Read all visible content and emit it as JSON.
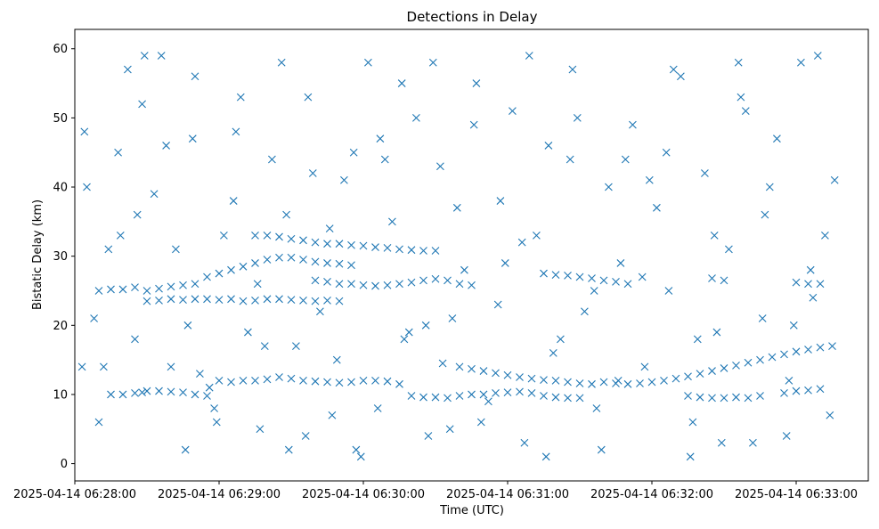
{
  "chart_data": {
    "type": "scatter",
    "title": "Detections in Delay",
    "xlabel": "Time (UTC)",
    "ylabel": "Bistatic Delay (km)",
    "marker": "x",
    "color": "#1f77b4",
    "x_unit": "seconds after 2025-04-14 06:28:00 UTC",
    "xlim": [
      0,
      330
    ],
    "ylim": [
      -2.5,
      62.8
    ],
    "x_ticks": [
      {
        "value": 0,
        "label": "2025-04-14 06:28:00"
      },
      {
        "value": 60,
        "label": "2025-04-14 06:29:00"
      },
      {
        "value": 120,
        "label": "2025-04-14 06:30:00"
      },
      {
        "value": 180,
        "label": "2025-04-14 06:31:00"
      },
      {
        "value": 240,
        "label": "2025-04-14 06:32:00"
      },
      {
        "value": 300,
        "label": "2025-04-14 06:33:00"
      }
    ],
    "y_ticks": [
      {
        "value": 0,
        "label": "0"
      },
      {
        "value": 10,
        "label": "10"
      },
      {
        "value": 20,
        "label": "20"
      },
      {
        "value": 30,
        "label": "30"
      },
      {
        "value": 40,
        "label": "40"
      },
      {
        "value": 50,
        "label": "50"
      },
      {
        "value": 60,
        "label": "60"
      }
    ],
    "series": [
      {
        "name": "detections",
        "points": [
          [
            15,
            10
          ],
          [
            20,
            10
          ],
          [
            25,
            10.2
          ],
          [
            28,
            10.3
          ],
          [
            30,
            10.5
          ],
          [
            35,
            10.5
          ],
          [
            40,
            10.4
          ],
          [
            45,
            10.3
          ],
          [
            50,
            10
          ],
          [
            55,
            9.8
          ],
          [
            60,
            12
          ],
          [
            65,
            11.8
          ],
          [
            70,
            12
          ],
          [
            75,
            12
          ],
          [
            80,
            12.2
          ],
          [
            85,
            12.5
          ],
          [
            90,
            12.3
          ],
          [
            95,
            12
          ],
          [
            100,
            11.9
          ],
          [
            105,
            11.8
          ],
          [
            110,
            11.7
          ],
          [
            115,
            11.8
          ],
          [
            120,
            12
          ],
          [
            125,
            12
          ],
          [
            130,
            11.9
          ],
          [
            135,
            11.5
          ],
          [
            140,
            9.8
          ],
          [
            145,
            9.6
          ],
          [
            150,
            9.6
          ],
          [
            155,
            9.5
          ],
          [
            160,
            9.8
          ],
          [
            165,
            10
          ],
          [
            170,
            10
          ],
          [
            175,
            10.2
          ],
          [
            180,
            10.3
          ],
          [
            185,
            10.4
          ],
          [
            190,
            10.2
          ],
          [
            195,
            9.8
          ],
          [
            200,
            9.6
          ],
          [
            205,
            9.5
          ],
          [
            210,
            9.5
          ],
          [
            153,
            14.5
          ],
          [
            160,
            14
          ],
          [
            165,
            13.7
          ],
          [
            170,
            13.4
          ],
          [
            175,
            13.1
          ],
          [
            180,
            12.8
          ],
          [
            185,
            12.5
          ],
          [
            190,
            12.3
          ],
          [
            195,
            12.1
          ],
          [
            200,
            12
          ],
          [
            205,
            11.8
          ],
          [
            210,
            11.6
          ],
          [
            215,
            11.5
          ],
          [
            220,
            11.8
          ],
          [
            225,
            11.6
          ],
          [
            230,
            11.5
          ],
          [
            235,
            11.6
          ],
          [
            240,
            11.8
          ],
          [
            245,
            12
          ],
          [
            250,
            12.3
          ],
          [
            255,
            12.6
          ],
          [
            260,
            13
          ],
          [
            265,
            13.4
          ],
          [
            270,
            13.8
          ],
          [
            275,
            14.2
          ],
          [
            280,
            14.6
          ],
          [
            285,
            15
          ],
          [
            290,
            15.4
          ],
          [
            295,
            15.8
          ],
          [
            300,
            16.2
          ],
          [
            305,
            16.5
          ],
          [
            310,
            16.8
          ],
          [
            315,
            17
          ],
          [
            255,
            9.8
          ],
          [
            260,
            9.6
          ],
          [
            265,
            9.5
          ],
          [
            270,
            9.5
          ],
          [
            275,
            9.6
          ],
          [
            280,
            9.5
          ],
          [
            285,
            9.8
          ],
          [
            295,
            10.2
          ],
          [
            300,
            10.5
          ],
          [
            305,
            10.6
          ],
          [
            310,
            10.8
          ],
          [
            10,
            25
          ],
          [
            15,
            25.2
          ],
          [
            20,
            25.2
          ],
          [
            25,
            25.5
          ],
          [
            30,
            25
          ],
          [
            35,
            25.3
          ],
          [
            40,
            25.6
          ],
          [
            45,
            25.8
          ],
          [
            50,
            26
          ],
          [
            55,
            27
          ],
          [
            60,
            27.5
          ],
          [
            65,
            28
          ],
          [
            70,
            28.5
          ],
          [
            75,
            29
          ],
          [
            80,
            29.5
          ],
          [
            30,
            23.5
          ],
          [
            35,
            23.6
          ],
          [
            40,
            23.8
          ],
          [
            45,
            23.7
          ],
          [
            50,
            23.8
          ],
          [
            55,
            23.8
          ],
          [
            60,
            23.7
          ],
          [
            65,
            23.8
          ],
          [
            70,
            23.5
          ],
          [
            75,
            23.6
          ],
          [
            80,
            23.8
          ],
          [
            85,
            23.8
          ],
          [
            90,
            23.7
          ],
          [
            95,
            23.6
          ],
          [
            100,
            23.5
          ],
          [
            105,
            23.6
          ],
          [
            110,
            23.5
          ],
          [
            75,
            33
          ],
          [
            80,
            33
          ],
          [
            85,
            32.8
          ],
          [
            90,
            32.5
          ],
          [
            95,
            32.3
          ],
          [
            100,
            32
          ],
          [
            105,
            31.8
          ],
          [
            110,
            31.8
          ],
          [
            115,
            31.6
          ],
          [
            120,
            31.5
          ],
          [
            125,
            31.3
          ],
          [
            130,
            31.2
          ],
          [
            135,
            31
          ],
          [
            140,
            30.9
          ],
          [
            145,
            30.8
          ],
          [
            150,
            30.8
          ],
          [
            85,
            29.8
          ],
          [
            90,
            29.8
          ],
          [
            95,
            29.5
          ],
          [
            100,
            29.2
          ],
          [
            105,
            29
          ],
          [
            110,
            28.9
          ],
          [
            115,
            28.7
          ],
          [
            100,
            26.5
          ],
          [
            105,
            26.3
          ],
          [
            110,
            26
          ],
          [
            115,
            26
          ],
          [
            120,
            25.8
          ],
          [
            125,
            25.7
          ],
          [
            130,
            25.8
          ],
          [
            135,
            26
          ],
          [
            140,
            26.2
          ],
          [
            145,
            26.5
          ],
          [
            150,
            26.7
          ],
          [
            155,
            26.5
          ],
          [
            160,
            26
          ],
          [
            165,
            25.8
          ],
          [
            195,
            27.5
          ],
          [
            200,
            27.3
          ],
          [
            205,
            27.2
          ],
          [
            210,
            27
          ],
          [
            215,
            26.8
          ],
          [
            220,
            26.5
          ],
          [
            225,
            26.3
          ],
          [
            230,
            26
          ],
          [
            265,
            26.8
          ],
          [
            270,
            26.5
          ],
          [
            300,
            26.2
          ],
          [
            305,
            26
          ],
          [
            310,
            26
          ],
          [
            25,
            18
          ],
          [
            40,
            14
          ],
          [
            50,
            56
          ],
          [
            5,
            40
          ],
          [
            10,
            6
          ],
          [
            12,
            14
          ],
          [
            18,
            45
          ],
          [
            22,
            57
          ],
          [
            28,
            52
          ],
          [
            33,
            39
          ],
          [
            38,
            46
          ],
          [
            42,
            31
          ],
          [
            47,
            20
          ],
          [
            52,
            13
          ],
          [
            58,
            8
          ],
          [
            62,
            33
          ],
          [
            67,
            48
          ],
          [
            72,
            19
          ],
          [
            77,
            5
          ],
          [
            82,
            44
          ],
          [
            88,
            36
          ],
          [
            92,
            17
          ],
          [
            97,
            53
          ],
          [
            102,
            22
          ],
          [
            107,
            7
          ],
          [
            112,
            41
          ],
          [
            117,
            2
          ],
          [
            122,
            58
          ],
          [
            127,
            47
          ],
          [
            132,
            35
          ],
          [
            137,
            18
          ],
          [
            142,
            50
          ],
          [
            147,
            4
          ],
          [
            152,
            43
          ],
          [
            157,
            21
          ],
          [
            162,
            28
          ],
          [
            167,
            55
          ],
          [
            172,
            9
          ],
          [
            177,
            38
          ],
          [
            182,
            51
          ],
          [
            187,
            3
          ],
          [
            192,
            33
          ],
          [
            197,
            46
          ],
          [
            202,
            18
          ],
          [
            207,
            57
          ],
          [
            212,
            22
          ],
          [
            217,
            8
          ],
          [
            222,
            40
          ],
          [
            227,
            29
          ],
          [
            232,
            49
          ],
          [
            237,
            14
          ],
          [
            242,
            37
          ],
          [
            247,
            25
          ],
          [
            252,
            56
          ],
          [
            257,
            6
          ],
          [
            262,
            42
          ],
          [
            267,
            19
          ],
          [
            272,
            31
          ],
          [
            277,
            53
          ],
          [
            282,
            3
          ],
          [
            287,
            36
          ],
          [
            292,
            47
          ],
          [
            297,
            12
          ],
          [
            302,
            58
          ],
          [
            307,
            24
          ],
          [
            312,
            33
          ],
          [
            316,
            41
          ],
          [
            4,
            48
          ],
          [
            8,
            21
          ],
          [
            14,
            31
          ],
          [
            26,
            36
          ],
          [
            36,
            59
          ],
          [
            46,
            2
          ],
          [
            56,
            11
          ],
          [
            66,
            38
          ],
          [
            76,
            26
          ],
          [
            86,
            58
          ],
          [
            96,
            4
          ],
          [
            106,
            34
          ],
          [
            116,
            45
          ],
          [
            126,
            8
          ],
          [
            136,
            55
          ],
          [
            146,
            20
          ],
          [
            156,
            5
          ],
          [
            166,
            49
          ],
          [
            176,
            23
          ],
          [
            186,
            32
          ],
          [
            196,
            1
          ],
          [
            206,
            44
          ],
          [
            216,
            25
          ],
          [
            226,
            12
          ],
          [
            236,
            27
          ],
          [
            246,
            45
          ],
          [
            256,
            1
          ],
          [
            266,
            33
          ],
          [
            276,
            58
          ],
          [
            286,
            21
          ],
          [
            296,
            4
          ],
          [
            306,
            28
          ],
          [
            314,
            7
          ],
          [
            3,
            14
          ],
          [
            19,
            33
          ],
          [
            29,
            59
          ],
          [
            49,
            47
          ],
          [
            59,
            6
          ],
          [
            69,
            53
          ],
          [
            79,
            17
          ],
          [
            89,
            2
          ],
          [
            99,
            42
          ],
          [
            109,
            15
          ],
          [
            119,
            1
          ],
          [
            129,
            44
          ],
          [
            139,
            19
          ],
          [
            149,
            58
          ],
          [
            159,
            37
          ],
          [
            169,
            6
          ],
          [
            179,
            29
          ],
          [
            189,
            59
          ],
          [
            199,
            16
          ],
          [
            209,
            50
          ],
          [
            219,
            2
          ],
          [
            229,
            44
          ],
          [
            239,
            41
          ],
          [
            249,
            57
          ],
          [
            259,
            18
          ],
          [
            269,
            3
          ],
          [
            279,
            51
          ],
          [
            289,
            40
          ],
          [
            299,
            20
          ],
          [
            309,
            59
          ]
        ]
      }
    ]
  }
}
